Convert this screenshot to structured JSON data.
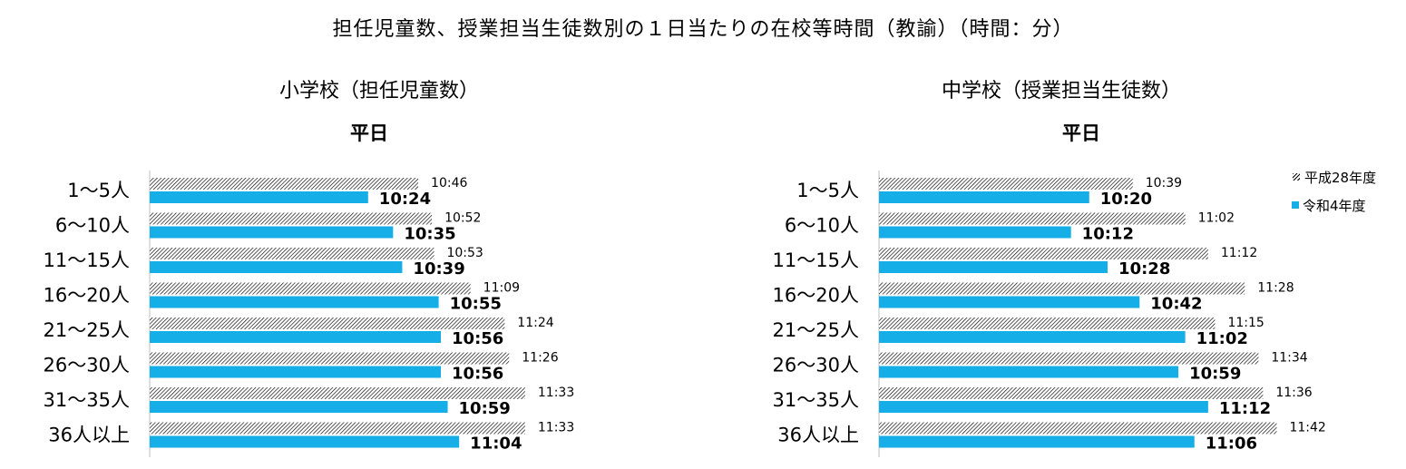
{
  "title": "担任児童数、授業担当生徒数別の１日当たりの在校等時間（教諭）（時間：分）",
  "colors": {
    "r4_bar": "#16aee6",
    "h28_hatch": "#000000",
    "axis": "#bfbfbf"
  },
  "legend": {
    "h28": "平成28年度",
    "r4": "令和4年度"
  },
  "chart_data": [
    {
      "type": "bar",
      "orientation": "horizontal",
      "title": "小学校（担任児童数）",
      "subtitle": "平日",
      "categories": [
        "1～5人",
        "6～10人",
        "11～15人",
        "16～20人",
        "21～25人",
        "26～30人",
        "31～35人",
        "36人以上"
      ],
      "series": [
        {
          "name": "平成28年度",
          "values": [
            10.767,
            10.867,
            10.883,
            11.15,
            11.4,
            11.433,
            11.55,
            11.55
          ],
          "labels": [
            "10:46",
            "10:52",
            "10:53",
            "11:09",
            "11:24",
            "11:26",
            "11:33",
            "11:33"
          ]
        },
        {
          "name": "令和4年度",
          "values": [
            10.4,
            10.583,
            10.65,
            10.917,
            10.933,
            10.933,
            10.983,
            11.067
          ],
          "labels": [
            "10:24",
            "10:35",
            "10:39",
            "10:55",
            "10:56",
            "10:56",
            "10:59",
            "11:04"
          ]
        }
      ],
      "xlim": [
        8.8,
        12.5
      ],
      "legend": false
    },
    {
      "type": "bar",
      "orientation": "horizontal",
      "title": "中学校（授業担当生徒数）",
      "subtitle": "平日",
      "categories": [
        "1～5人",
        "6～10人",
        "11～15人",
        "16～20人",
        "21～25人",
        "26～30人",
        "31～35人",
        "36人以上"
      ],
      "series": [
        {
          "name": "平成28年度",
          "values": [
            10.65,
            11.033,
            11.2,
            11.467,
            11.25,
            11.567,
            11.6,
            11.7
          ],
          "labels": [
            "10:39",
            "11:02",
            "11:12",
            "11:28",
            "11:15",
            "11:34",
            "11:36",
            "11:42"
          ]
        },
        {
          "name": "令和4年度",
          "values": [
            10.333,
            10.2,
            10.467,
            10.7,
            11.033,
            10.983,
            11.2,
            11.1
          ],
          "labels": [
            "10:20",
            "10:12",
            "10:28",
            "10:42",
            "11:02",
            "10:59",
            "11:12",
            "11:06"
          ]
        }
      ],
      "xlim": [
        8.8,
        12.5
      ],
      "legend": "right"
    }
  ]
}
